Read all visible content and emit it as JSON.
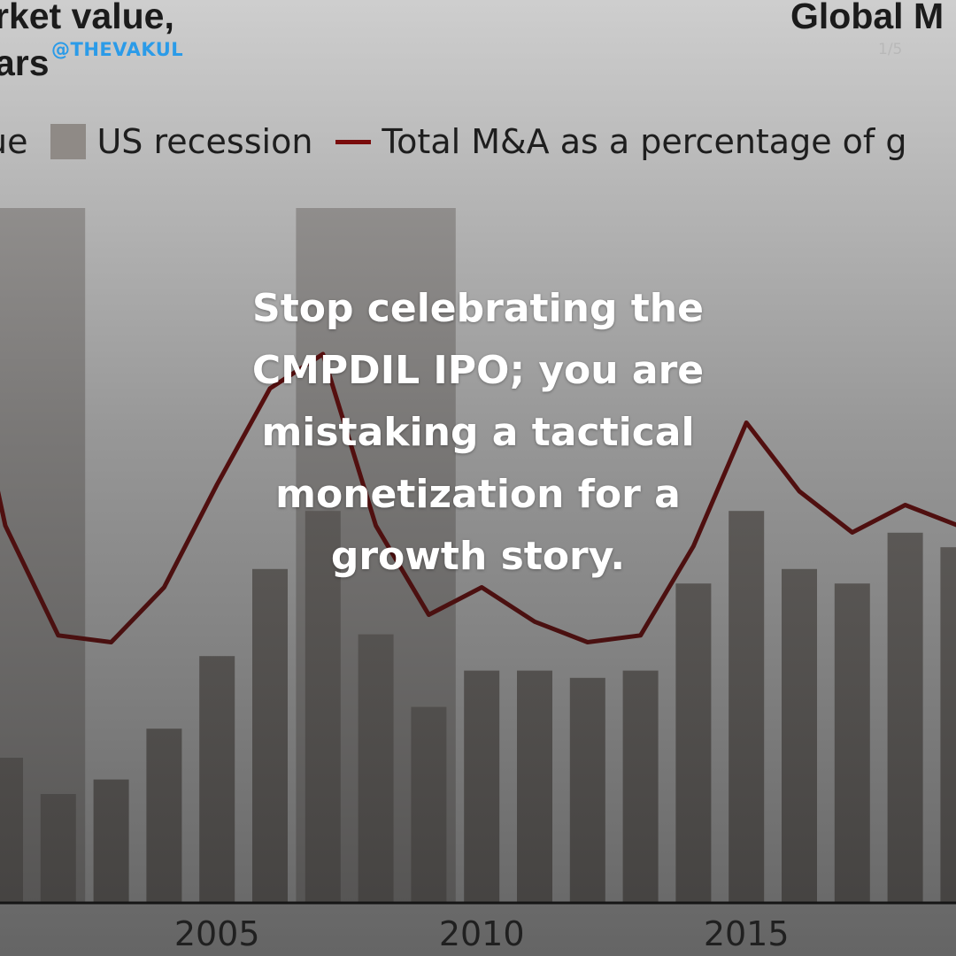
{
  "slide": {
    "title_left": "rket value,\nars",
    "title_right": "Global M",
    "handle": "@THEVAKUL",
    "page_indicator": "1/5",
    "headline": "Stop celebrating the CMPDIL IPO; you are mistaking a tactical monetization for a growth story."
  },
  "legend": {
    "items": [
      {
        "label": "ue",
        "swatch": "none"
      },
      {
        "label": "US recession",
        "swatch": "box"
      },
      {
        "label": "Total M&A as a percentage of g",
        "swatch": "line"
      }
    ]
  },
  "chart_data": {
    "type": "bar",
    "x": [
      2001,
      2002,
      2003,
      2004,
      2005,
      2006,
      2007,
      2008,
      2009,
      2010,
      2011,
      2012,
      2013,
      2014,
      2015,
      2016,
      2017,
      2018,
      2019
    ],
    "series": [
      {
        "values": [
          20,
          15,
          17,
          24,
          34,
          46,
          54,
          37,
          27,
          32,
          32,
          31,
          32,
          44,
          54,
          46,
          44,
          51,
          49
        ]
      },
      {
        "values": [
          5.5,
          3.9,
          3.8,
          4.6,
          6.1,
          7.5,
          8.0,
          5.5,
          4.2,
          4.6,
          4.1,
          3.8,
          3.9,
          5.2,
          7.0,
          6.0,
          5.4,
          5.8,
          5.5
        ]
      }
    ],
    "recessions": [
      [
        2001,
        2002
      ],
      [
        2007,
        2009
      ]
    ],
    "x_tick_labels": [
      "2005",
      "2010",
      "2015"
    ],
    "x_ticks": [
      2005,
      2010,
      2015
    ],
    "colors": {
      "bar": "#8f8a86",
      "recession": "#8f8a86",
      "line": "#7a0c0c",
      "axis": "#1a1a1a"
    }
  }
}
